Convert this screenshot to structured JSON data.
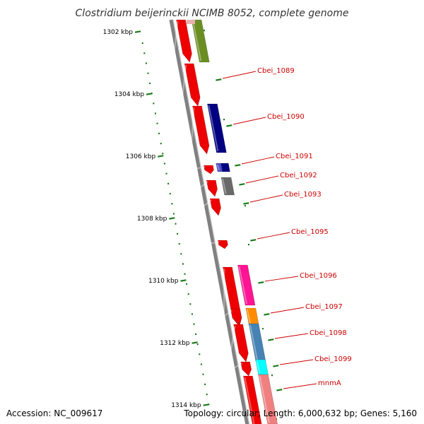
{
  "title": "Clostridium beijerinckii NCIMB 8052, complete genome",
  "footer": {
    "accession": "Accession: NC_009617",
    "topology": "Topology: circular; Length: 6,000,632 bp; Genes: 5,160"
  },
  "colors": {
    "backbone": "#808080",
    "tick": "#1a7a1a",
    "label": "#cc0000",
    "forward_gene": "#ee0000"
  },
  "ticks": [
    "1302 kbp",
    "1304 kbp",
    "1306 kbp",
    "1308 kbp",
    "1310 kbp",
    "1312 kbp",
    "1314 kbp"
  ],
  "genes": [
    {
      "label": "Cbei_1089",
      "color": "#6b8e23"
    },
    {
      "label": "Cbei_1090",
      "color": "#000080"
    },
    {
      "label": "Cbei_1091",
      "color": "#000080"
    },
    {
      "label": "Cbei_1092",
      "color": "#696969"
    },
    {
      "label": "Cbei_1093",
      "color": "#ff0000"
    },
    {
      "label": "Cbei_1095",
      "color": "#ff0000"
    },
    {
      "label": "Cbei_1096",
      "color": "#ff1493"
    },
    {
      "label": "Cbei_1097",
      "color": "#ff8c00"
    },
    {
      "label": "Cbei_1098",
      "color": "#4682b4"
    },
    {
      "label": "Cbei_1099",
      "color": "#00ffff"
    },
    {
      "label": "mnmA",
      "color": "#f08080"
    }
  ]
}
